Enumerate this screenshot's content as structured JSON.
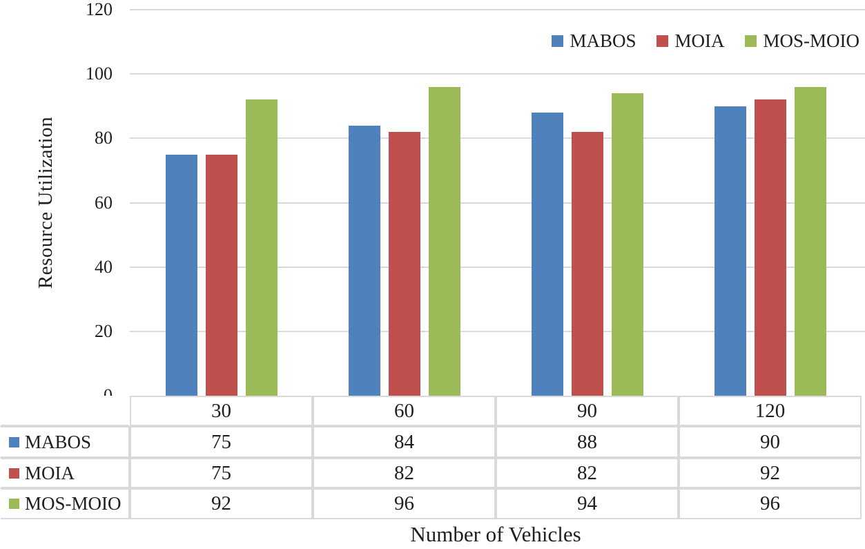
{
  "colors": {
    "series_blue": "#4F81BD",
    "series_red": "#C0504D",
    "series_green": "#9BBB59",
    "gridline": "#D9D9D9",
    "table_border": "#D9D9D9",
    "text": "#1F1F1F",
    "background": "#FFFFFF"
  },
  "chart_data": {
    "type": "bar",
    "title": "",
    "xlabel": "Number of Vehicles",
    "ylabel": "Resource Utilization",
    "categories": [
      "30",
      "60",
      "90",
      "120"
    ],
    "series": [
      {
        "name": "MABOS",
        "color": "#4F81BD",
        "values": [
          75,
          84,
          88,
          90
        ]
      },
      {
        "name": "MOIA",
        "color": "#C0504D",
        "values": [
          75,
          82,
          82,
          92
        ]
      },
      {
        "name": "MOS-MOIO",
        "color": "#9BBB59",
        "values": [
          92,
          96,
          94,
          96
        ]
      }
    ],
    "y_axis": {
      "min": 0,
      "max": 120,
      "step": 20,
      "ticks": [
        0,
        20,
        40,
        60,
        80,
        100,
        120
      ]
    },
    "grid": true,
    "legend_position": "top-right",
    "data_table_shown": true
  }
}
